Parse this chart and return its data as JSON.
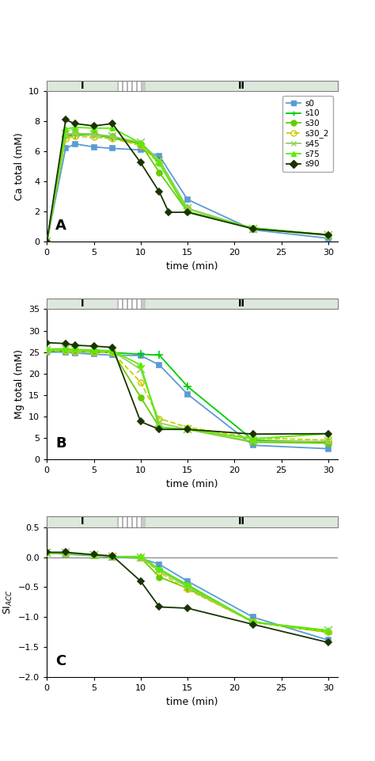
{
  "series": {
    "s0": {
      "color": "#5b9bd5",
      "linestyle": "-",
      "marker": "s",
      "markersize": 5,
      "fillstyle": "full",
      "lw": 1.3
    },
    "s10": {
      "color": "#00cc00",
      "linestyle": "-",
      "marker": "+",
      "markersize": 7,
      "fillstyle": "full",
      "lw": 1.3
    },
    "s30": {
      "color": "#66cc00",
      "linestyle": "-",
      "marker": "o",
      "markersize": 5,
      "fillstyle": "full",
      "lw": 1.3
    },
    "s30_2": {
      "color": "#cccc00",
      "linestyle": "--",
      "marker": "o",
      "markersize": 5,
      "fillstyle": "none",
      "lw": 1.3
    },
    "s45": {
      "color": "#99cc66",
      "linestyle": "-",
      "marker": "x",
      "markersize": 7,
      "fillstyle": "full",
      "lw": 1.3
    },
    "s75": {
      "color": "#55ee00",
      "linestyle": "-",
      "marker": "^",
      "markersize": 5,
      "fillstyle": "full",
      "lw": 1.3
    },
    "s90": {
      "color": "#1a3300",
      "linestyle": "-",
      "marker": "D",
      "markersize": 4,
      "fillstyle": "full",
      "lw": 1.3
    }
  },
  "ca_data": {
    "s0": {
      "x": [
        0,
        2,
        3,
        5,
        7,
        10,
        12,
        15,
        22,
        30
      ],
      "y": [
        0.0,
        6.2,
        6.5,
        6.3,
        6.2,
        6.1,
        5.7,
        2.8,
        0.78,
        0.22
      ]
    },
    "s10": {
      "x": [
        0,
        2,
        3,
        5,
        7,
        10,
        12,
        15,
        22,
        30
      ],
      "y": [
        0.0,
        7.0,
        7.1,
        7.1,
        6.9,
        6.5,
        5.4,
        2.2,
        0.85,
        0.45
      ]
    },
    "s30": {
      "x": [
        0,
        2,
        3,
        5,
        7,
        10,
        12,
        15,
        22,
        30
      ],
      "y": [
        0.0,
        7.1,
        7.2,
        7.15,
        7.0,
        6.5,
        4.6,
        2.0,
        0.9,
        0.45
      ]
    },
    "s30_2": {
      "x": [
        0,
        2,
        3,
        5,
        7,
        10,
        12,
        15,
        22,
        30
      ],
      "y": [
        0.0,
        6.85,
        7.0,
        6.95,
        6.85,
        6.4,
        5.2,
        2.2,
        0.85,
        0.45
      ]
    },
    "s45": {
      "x": [
        0,
        2,
        3,
        5,
        7,
        10,
        12,
        15,
        22,
        30
      ],
      "y": [
        0.0,
        7.15,
        7.2,
        7.1,
        7.0,
        6.6,
        5.4,
        2.2,
        0.85,
        0.4
      ]
    },
    "s75": {
      "x": [
        0,
        2,
        3,
        5,
        7,
        10,
        12,
        15,
        22,
        30
      ],
      "y": [
        0.0,
        7.5,
        7.6,
        7.55,
        7.55,
        6.55,
        5.2,
        2.0,
        0.9,
        0.45
      ]
    },
    "s90": {
      "x": [
        0,
        2,
        3,
        5,
        7,
        10,
        12,
        13,
        15,
        22,
        30
      ],
      "y": [
        0.0,
        8.1,
        7.85,
        7.7,
        7.85,
        5.25,
        3.3,
        1.95,
        1.95,
        0.85,
        0.45
      ]
    }
  },
  "mg_data": {
    "s0": {
      "x": [
        0,
        2,
        3,
        5,
        7,
        10,
        12,
        15,
        22,
        30
      ],
      "y": [
        25.0,
        25.0,
        24.8,
        24.5,
        24.3,
        24.2,
        22.0,
        15.2,
        3.3,
        2.5
      ]
    },
    "s10": {
      "x": [
        0,
        2,
        3,
        5,
        7,
        10,
        12,
        15,
        22,
        30
      ],
      "y": [
        25.2,
        25.3,
        25.1,
        25.0,
        24.9,
        24.5,
        24.3,
        17.0,
        4.5,
        4.0
      ]
    },
    "s30": {
      "x": [
        0,
        2,
        3,
        5,
        7,
        10,
        12,
        15,
        22,
        30
      ],
      "y": [
        25.5,
        25.5,
        25.4,
        25.3,
        25.1,
        14.5,
        7.5,
        7.0,
        4.0,
        3.8
      ]
    },
    "s30_2": {
      "x": [
        0,
        2,
        3,
        5,
        7,
        10,
        12,
        15,
        22,
        30
      ],
      "y": [
        25.3,
        25.3,
        25.1,
        25.0,
        24.9,
        18.0,
        9.5,
        7.5,
        5.0,
        4.5
      ]
    },
    "s45": {
      "x": [
        0,
        2,
        3,
        5,
        7,
        10,
        12,
        15,
        22,
        30
      ],
      "y": [
        25.5,
        25.6,
        25.4,
        25.4,
        25.2,
        21.0,
        8.5,
        7.0,
        4.2,
        4.2
      ]
    },
    "s75": {
      "x": [
        0,
        2,
        3,
        5,
        7,
        10,
        12,
        15,
        22,
        30
      ],
      "y": [
        25.7,
        25.8,
        25.6,
        25.5,
        25.3,
        22.0,
        7.5,
        7.0,
        4.8,
        6.0
      ]
    },
    "s90": {
      "x": [
        0,
        2,
        3,
        5,
        7,
        10,
        12,
        15,
        22,
        30
      ],
      "y": [
        27.2,
        27.0,
        26.6,
        26.4,
        26.1,
        8.8,
        7.0,
        7.0,
        5.9,
        6.0
      ]
    }
  },
  "si_data": {
    "s0": {
      "x": [
        0,
        2,
        5,
        7,
        10,
        12,
        15,
        22,
        30
      ],
      "y": [
        0.07,
        0.05,
        0.02,
        0.0,
        -0.02,
        -0.12,
        -0.4,
        -1.0,
        -1.38
      ]
    },
    "s10": {
      "x": [
        0,
        2,
        5,
        7,
        10,
        12,
        15,
        22,
        30
      ],
      "y": [
        0.07,
        0.07,
        0.03,
        0.01,
        0.0,
        -0.2,
        -0.47,
        -1.08,
        -1.25
      ]
    },
    "s30": {
      "x": [
        0,
        2,
        5,
        7,
        10,
        12,
        15,
        22,
        30
      ],
      "y": [
        0.07,
        0.07,
        0.03,
        0.01,
        -0.01,
        -0.33,
        -0.52,
        -1.08,
        -1.25
      ]
    },
    "s30_2": {
      "x": [
        0,
        2,
        5,
        7,
        10,
        12,
        15,
        22,
        30
      ],
      "y": [
        0.07,
        0.06,
        0.03,
        0.01,
        0.0,
        -0.25,
        -0.54,
        -1.08,
        -1.25
      ]
    },
    "s45": {
      "x": [
        0,
        2,
        5,
        7,
        10,
        12,
        15,
        22,
        30
      ],
      "y": [
        0.07,
        0.07,
        0.03,
        0.01,
        0.0,
        -0.22,
        -0.5,
        -1.08,
        -1.22
      ]
    },
    "s75": {
      "x": [
        0,
        2,
        5,
        7,
        10,
        12,
        15,
        22,
        30
      ],
      "y": [
        0.07,
        0.07,
        0.03,
        0.01,
        0.01,
        -0.2,
        -0.46,
        -1.08,
        -1.22
      ]
    },
    "s90": {
      "x": [
        0,
        2,
        5,
        7,
        10,
        12,
        15,
        22,
        30
      ],
      "y": [
        0.08,
        0.08,
        0.04,
        0.02,
        -0.4,
        -0.83,
        -0.85,
        -1.12,
        -1.42
      ]
    }
  },
  "ylim_ca": [
    0,
    10
  ],
  "ylim_mg": [
    0,
    35
  ],
  "ylim_si": [
    -2.0,
    0.5
  ],
  "yticks_ca": [
    0,
    2,
    4,
    6,
    8,
    10
  ],
  "yticks_mg": [
    0,
    5,
    10,
    15,
    20,
    25,
    30,
    35
  ],
  "yticks_si": [
    -2.0,
    -1.5,
    -1.0,
    -0.5,
    0.0,
    0.5
  ],
  "xlim": [
    0,
    31
  ],
  "xticks": [
    0,
    5,
    10,
    15,
    20,
    25,
    30
  ],
  "xlabel": "time (min)",
  "ylabel_ca": "Ca total (mM)",
  "ylabel_mg": "Mg total (mM)",
  "ylabel_si": "SI$_{ACC}$",
  "panel_labels": [
    "A",
    "B",
    "C"
  ],
  "legend_order": [
    "s0",
    "s10",
    "s30",
    "s30_2",
    "s45",
    "s75",
    "s90"
  ],
  "bg_color": "#ffffff",
  "header_color_main": "#d4d4d4",
  "header_color_region": "#e0e8e0",
  "stripe_color": "#f0f0f0"
}
